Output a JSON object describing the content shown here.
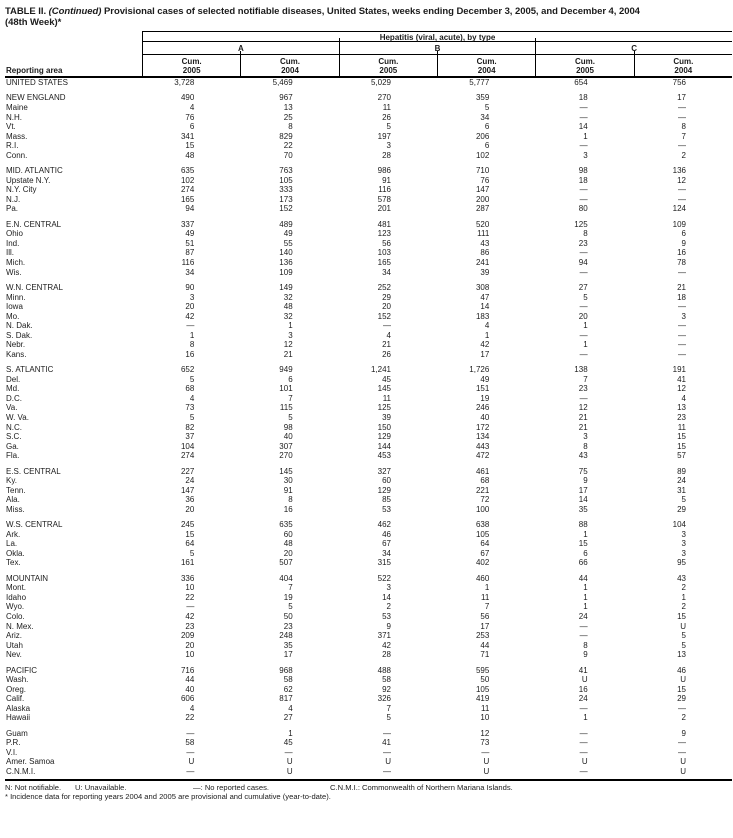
{
  "title": {
    "prefix": "TABLE II.",
    "continued": "(Continued)",
    "text": "Provisional cases of selected notifiable diseases, United States, weeks ending December 3, 2005, and December 4, 2004",
    "week": "(48th Week)*"
  },
  "table": {
    "reporting_area_label": "Reporting area",
    "disease_group_label": "Hepatitis (viral, acute), by type",
    "subgroups": [
      "A",
      "B",
      "C"
    ],
    "cum_label": "Cum.",
    "years": [
      "2005",
      "2004",
      "2005",
      "2004",
      "2005",
      "2004"
    ],
    "rows": [
      {
        "area": "UNITED STATES",
        "v": [
          "3,728",
          "5,469",
          "5,029",
          "5,777",
          "654",
          "756"
        ],
        "section_start": false
      },
      {
        "area": "NEW ENGLAND",
        "v": [
          "490",
          "967",
          "270",
          "359",
          "18",
          "17"
        ],
        "section_start": true
      },
      {
        "area": "Maine",
        "v": [
          "4",
          "13",
          "11",
          "5",
          "—",
          "—"
        ],
        "section_start": false
      },
      {
        "area": "N.H.",
        "v": [
          "76",
          "25",
          "26",
          "34",
          "—",
          "—"
        ],
        "section_start": false
      },
      {
        "area": "Vt.",
        "v": [
          "6",
          "8",
          "5",
          "6",
          "14",
          "8"
        ],
        "section_start": false
      },
      {
        "area": "Mass.",
        "v": [
          "341",
          "829",
          "197",
          "206",
          "1",
          "7"
        ],
        "section_start": false
      },
      {
        "area": "R.I.",
        "v": [
          "15",
          "22",
          "3",
          "6",
          "—",
          "—"
        ],
        "section_start": false
      },
      {
        "area": "Conn.",
        "v": [
          "48",
          "70",
          "28",
          "102",
          "3",
          "2"
        ],
        "section_start": false
      },
      {
        "area": "MID. ATLANTIC",
        "v": [
          "635",
          "763",
          "986",
          "710",
          "98",
          "136"
        ],
        "section_start": true
      },
      {
        "area": "Upstate N.Y.",
        "v": [
          "102",
          "105",
          "91",
          "76",
          "18",
          "12"
        ],
        "section_start": false
      },
      {
        "area": "N.Y. City",
        "v": [
          "274",
          "333",
          "116",
          "147",
          "—",
          "—"
        ],
        "section_start": false
      },
      {
        "area": "N.J.",
        "v": [
          "165",
          "173",
          "578",
          "200",
          "—",
          "—"
        ],
        "section_start": false
      },
      {
        "area": "Pa.",
        "v": [
          "94",
          "152",
          "201",
          "287",
          "80",
          "124"
        ],
        "section_start": false
      },
      {
        "area": "E.N. CENTRAL",
        "v": [
          "337",
          "489",
          "481",
          "520",
          "125",
          "109"
        ],
        "section_start": true
      },
      {
        "area": "Ohio",
        "v": [
          "49",
          "49",
          "123",
          "111",
          "8",
          "6"
        ],
        "section_start": false
      },
      {
        "area": "Ind.",
        "v": [
          "51",
          "55",
          "56",
          "43",
          "23",
          "9"
        ],
        "section_start": false
      },
      {
        "area": "Ill.",
        "v": [
          "87",
          "140",
          "103",
          "86",
          "—",
          "16"
        ],
        "section_start": false
      },
      {
        "area": "Mich.",
        "v": [
          "116",
          "136",
          "165",
          "241",
          "94",
          "78"
        ],
        "section_start": false
      },
      {
        "area": "Wis.",
        "v": [
          "34",
          "109",
          "34",
          "39",
          "—",
          "—"
        ],
        "section_start": false
      },
      {
        "area": "W.N. CENTRAL",
        "v": [
          "90",
          "149",
          "252",
          "308",
          "27",
          "21"
        ],
        "section_start": true
      },
      {
        "area": "Minn.",
        "v": [
          "3",
          "32",
          "29",
          "47",
          "5",
          "18"
        ],
        "section_start": false
      },
      {
        "area": "Iowa",
        "v": [
          "20",
          "48",
          "20",
          "14",
          "—",
          "—"
        ],
        "section_start": false
      },
      {
        "area": "Mo.",
        "v": [
          "42",
          "32",
          "152",
          "183",
          "20",
          "3"
        ],
        "section_start": false
      },
      {
        "area": "N. Dak.",
        "v": [
          "—",
          "1",
          "—",
          "4",
          "1",
          "—"
        ],
        "section_start": false
      },
      {
        "area": "S. Dak.",
        "v": [
          "1",
          "3",
          "4",
          "1",
          "—",
          "—"
        ],
        "section_start": false
      },
      {
        "area": "Nebr.",
        "v": [
          "8",
          "12",
          "21",
          "42",
          "1",
          "—"
        ],
        "section_start": false
      },
      {
        "area": "Kans.",
        "v": [
          "16",
          "21",
          "26",
          "17",
          "—",
          "—"
        ],
        "section_start": false
      },
      {
        "area": "S. ATLANTIC",
        "v": [
          "652",
          "949",
          "1,241",
          "1,726",
          "138",
          "191"
        ],
        "section_start": true
      },
      {
        "area": "Del.",
        "v": [
          "5",
          "6",
          "45",
          "49",
          "7",
          "41"
        ],
        "section_start": false
      },
      {
        "area": "Md.",
        "v": [
          "68",
          "101",
          "145",
          "151",
          "23",
          "12"
        ],
        "section_start": false
      },
      {
        "area": "D.C.",
        "v": [
          "4",
          "7",
          "11",
          "19",
          "—",
          "4"
        ],
        "section_start": false
      },
      {
        "area": "Va.",
        "v": [
          "73",
          "115",
          "125",
          "246",
          "12",
          "13"
        ],
        "section_start": false
      },
      {
        "area": "W. Va.",
        "v": [
          "5",
          "5",
          "39",
          "40",
          "21",
          "23"
        ],
        "section_start": false
      },
      {
        "area": "N.C.",
        "v": [
          "82",
          "98",
          "150",
          "172",
          "21",
          "11"
        ],
        "section_start": false
      },
      {
        "area": "S.C.",
        "v": [
          "37",
          "40",
          "129",
          "134",
          "3",
          "15"
        ],
        "section_start": false
      },
      {
        "area": "Ga.",
        "v": [
          "104",
          "307",
          "144",
          "443",
          "8",
          "15"
        ],
        "section_start": false
      },
      {
        "area": "Fla.",
        "v": [
          "274",
          "270",
          "453",
          "472",
          "43",
          "57"
        ],
        "section_start": false
      },
      {
        "area": "E.S. CENTRAL",
        "v": [
          "227",
          "145",
          "327",
          "461",
          "75",
          "89"
        ],
        "section_start": true
      },
      {
        "area": "Ky.",
        "v": [
          "24",
          "30",
          "60",
          "68",
          "9",
          "24"
        ],
        "section_start": false
      },
      {
        "area": "Tenn.",
        "v": [
          "147",
          "91",
          "129",
          "221",
          "17",
          "31"
        ],
        "section_start": false
      },
      {
        "area": "Ala.",
        "v": [
          "36",
          "8",
          "85",
          "72",
          "14",
          "5"
        ],
        "section_start": false
      },
      {
        "area": "Miss.",
        "v": [
          "20",
          "16",
          "53",
          "100",
          "35",
          "29"
        ],
        "section_start": false
      },
      {
        "area": "W.S. CENTRAL",
        "v": [
          "245",
          "635",
          "462",
          "638",
          "88",
          "104"
        ],
        "section_start": true
      },
      {
        "area": "Ark.",
        "v": [
          "15",
          "60",
          "46",
          "105",
          "1",
          "3"
        ],
        "section_start": false
      },
      {
        "area": "La.",
        "v": [
          "64",
          "48",
          "67",
          "64",
          "15",
          "3"
        ],
        "section_start": false
      },
      {
        "area": "Okla.",
        "v": [
          "5",
          "20",
          "34",
          "67",
          "6",
          "3"
        ],
        "section_start": false
      },
      {
        "area": "Tex.",
        "v": [
          "161",
          "507",
          "315",
          "402",
          "66",
          "95"
        ],
        "section_start": false
      },
      {
        "area": "MOUNTAIN",
        "v": [
          "336",
          "404",
          "522",
          "460",
          "44",
          "43"
        ],
        "section_start": true
      },
      {
        "area": "Mont.",
        "v": [
          "10",
          "7",
          "3",
          "1",
          "1",
          "2"
        ],
        "section_start": false
      },
      {
        "area": "Idaho",
        "v": [
          "22",
          "19",
          "14",
          "11",
          "1",
          "1"
        ],
        "section_start": false
      },
      {
        "area": "Wyo.",
        "v": [
          "—",
          "5",
          "2",
          "7",
          "1",
          "2"
        ],
        "section_start": false
      },
      {
        "area": "Colo.",
        "v": [
          "42",
          "50",
          "53",
          "56",
          "24",
          "15"
        ],
        "section_start": false
      },
      {
        "area": "N. Mex.",
        "v": [
          "23",
          "23",
          "9",
          "17",
          "—",
          "U"
        ],
        "section_start": false
      },
      {
        "area": "Ariz.",
        "v": [
          "209",
          "248",
          "371",
          "253",
          "—",
          "5"
        ],
        "section_start": false
      },
      {
        "area": "Utah",
        "v": [
          "20",
          "35",
          "42",
          "44",
          "8",
          "5"
        ],
        "section_start": false
      },
      {
        "area": "Nev.",
        "v": [
          "10",
          "17",
          "28",
          "71",
          "9",
          "13"
        ],
        "section_start": false
      },
      {
        "area": "PACIFIC",
        "v": [
          "716",
          "968",
          "488",
          "595",
          "41",
          "46"
        ],
        "section_start": true
      },
      {
        "area": "Wash.",
        "v": [
          "44",
          "58",
          "58",
          "50",
          "U",
          "U"
        ],
        "section_start": false
      },
      {
        "area": "Oreg.",
        "v": [
          "40",
          "62",
          "92",
          "105",
          "16",
          "15"
        ],
        "section_start": false
      },
      {
        "area": "Calif.",
        "v": [
          "606",
          "817",
          "326",
          "419",
          "24",
          "29"
        ],
        "section_start": false
      },
      {
        "area": "Alaska",
        "v": [
          "4",
          "4",
          "7",
          "11",
          "—",
          "—"
        ],
        "section_start": false
      },
      {
        "area": "Hawaii",
        "v": [
          "22",
          "27",
          "5",
          "10",
          "1",
          "2"
        ],
        "section_start": false
      },
      {
        "area": "Guam",
        "v": [
          "—",
          "1",
          "—",
          "12",
          "—",
          "9"
        ],
        "section_start": true
      },
      {
        "area": "P.R.",
        "v": [
          "58",
          "45",
          "41",
          "73",
          "—",
          "—"
        ],
        "section_start": false
      },
      {
        "area": "V.I.",
        "v": [
          "—",
          "—",
          "—",
          "—",
          "—",
          "—"
        ],
        "section_start": false
      },
      {
        "area": "Amer. Samoa",
        "v": [
          "U",
          "U",
          "U",
          "U",
          "U",
          "U"
        ],
        "section_start": false
      },
      {
        "area": "C.N.M.I.",
        "v": [
          "—",
          "U",
          "—",
          "U",
          "—",
          "U"
        ],
        "section_start": false
      }
    ]
  },
  "footnotes": {
    "legend": [
      "N: Not notifiable.",
      "U: Unavailable.",
      "—: No reported cases.",
      "C.N.M.I.: Commonwealth of Northern Mariana Islands."
    ],
    "note": "* Incidence data for reporting years 2004 and 2005 are provisional and cumulative (year-to-date)."
  }
}
